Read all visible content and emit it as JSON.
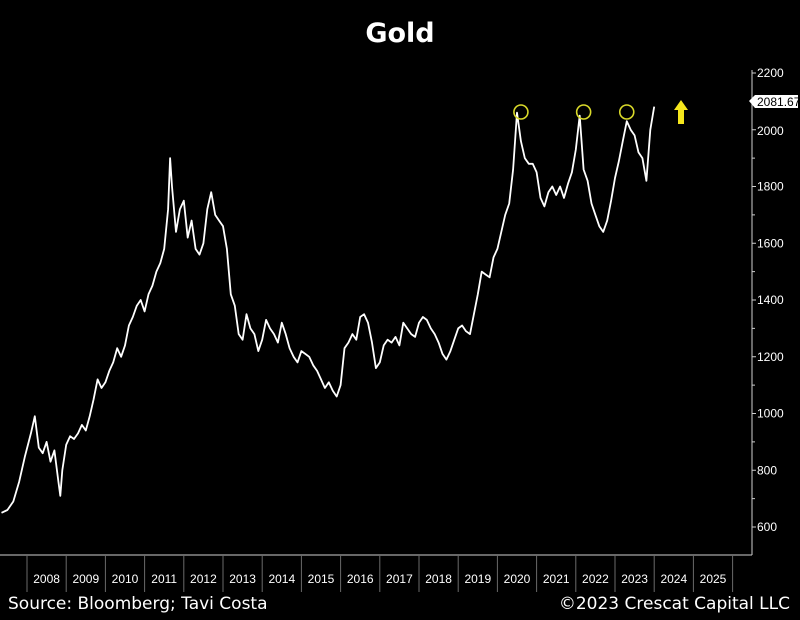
{
  "chart_data": {
    "type": "line",
    "title": "Gold",
    "xlabel": "",
    "ylabel": "",
    "ylim": [
      560,
      2200
    ],
    "y_ticks": [
      600,
      800,
      1000,
      1200,
      1400,
      1600,
      1800,
      2000,
      2200
    ],
    "x_tick_labels": [
      "2008",
      "2009",
      "2010",
      "2011",
      "2012",
      "2013",
      "2014",
      "2015",
      "2016",
      "2017",
      "2018",
      "2019",
      "2020",
      "2021",
      "2022",
      "2023",
      "2024",
      "2025"
    ],
    "grid": false,
    "legend": null,
    "last_value_label": "2081.67",
    "annotations": [
      {
        "type": "circle",
        "label": "peak-2020",
        "x": 2020.6,
        "y": 2060
      },
      {
        "type": "circle",
        "label": "peak-2022",
        "x": 2022.2,
        "y": 2050
      },
      {
        "type": "circle",
        "label": "peak-2023",
        "x": 2023.3,
        "y": 2050
      },
      {
        "type": "arrow-up",
        "color": "#f5e61c",
        "x": 2024.6,
        "y": 2040
      }
    ],
    "series": [
      {
        "name": "Gold",
        "color": "#ffffff",
        "x": [
          2007.35,
          2007.5,
          2007.65,
          2007.8,
          2007.95,
          2008.1,
          2008.2,
          2008.3,
          2008.4,
          2008.5,
          2008.6,
          2008.7,
          2008.8,
          2008.85,
          2008.9,
          2009.0,
          2009.1,
          2009.2,
          2009.3,
          2009.4,
          2009.5,
          2009.6,
          2009.7,
          2009.8,
          2009.9,
          2010.0,
          2010.1,
          2010.2,
          2010.3,
          2010.4,
          2010.5,
          2010.6,
          2010.7,
          2010.8,
          2010.9,
          2011.0,
          2011.1,
          2011.2,
          2011.3,
          2011.4,
          2011.5,
          2011.6,
          2011.65,
          2011.7,
          2011.8,
          2011.9,
          2012.0,
          2012.1,
          2012.2,
          2012.3,
          2012.4,
          2012.5,
          2012.6,
          2012.7,
          2012.8,
          2012.9,
          2013.0,
          2013.1,
          2013.2,
          2013.3,
          2013.4,
          2013.5,
          2013.6,
          2013.7,
          2013.8,
          2013.9,
          2014.0,
          2014.1,
          2014.2,
          2014.3,
          2014.4,
          2014.5,
          2014.6,
          2014.7,
          2014.8,
          2014.9,
          2015.0,
          2015.1,
          2015.2,
          2015.3,
          2015.4,
          2015.5,
          2015.6,
          2015.7,
          2015.8,
          2015.9,
          2016.0,
          2016.1,
          2016.2,
          2016.3,
          2016.4,
          2016.5,
          2016.6,
          2016.7,
          2016.8,
          2016.9,
          2017.0,
          2017.1,
          2017.2,
          2017.3,
          2017.4,
          2017.5,
          2017.6,
          2017.7,
          2017.8,
          2017.9,
          2018.0,
          2018.1,
          2018.2,
          2018.3,
          2018.4,
          2018.5,
          2018.6,
          2018.7,
          2018.8,
          2018.9,
          2019.0,
          2019.1,
          2019.2,
          2019.3,
          2019.4,
          2019.5,
          2019.6,
          2019.7,
          2019.8,
          2019.9,
          2020.0,
          2020.1,
          2020.2,
          2020.3,
          2020.4,
          2020.5,
          2020.6,
          2020.7,
          2020.8,
          2020.9,
          2021.0,
          2021.1,
          2021.2,
          2021.3,
          2021.4,
          2021.5,
          2021.6,
          2021.7,
          2021.8,
          2021.9,
          2022.0,
          2022.1,
          2022.2,
          2022.3,
          2022.4,
          2022.5,
          2022.6,
          2022.7,
          2022.8,
          2022.9,
          2023.0,
          2023.1,
          2023.2,
          2023.3,
          2023.4,
          2023.5,
          2023.6,
          2023.7,
          2023.8,
          2023.9,
          2024.0
        ],
        "values": [
          650,
          660,
          690,
          760,
          850,
          930,
          990,
          880,
          860,
          900,
          830,
          870,
          760,
          710,
          800,
          890,
          920,
          910,
          930,
          960,
          940,
          990,
          1050,
          1120,
          1090,
          1110,
          1150,
          1180,
          1230,
          1200,
          1240,
          1310,
          1340,
          1380,
          1400,
          1360,
          1420,
          1450,
          1500,
          1530,
          1580,
          1720,
          1900,
          1800,
          1640,
          1720,
          1750,
          1620,
          1680,
          1580,
          1560,
          1600,
          1720,
          1780,
          1700,
          1680,
          1660,
          1580,
          1420,
          1380,
          1280,
          1260,
          1350,
          1300,
          1280,
          1220,
          1260,
          1330,
          1300,
          1280,
          1250,
          1320,
          1280,
          1230,
          1200,
          1180,
          1220,
          1210,
          1200,
          1170,
          1150,
          1120,
          1090,
          1110,
          1080,
          1060,
          1100,
          1230,
          1250,
          1280,
          1260,
          1340,
          1350,
          1320,
          1250,
          1160,
          1180,
          1240,
          1260,
          1250,
          1270,
          1240,
          1320,
          1300,
          1280,
          1270,
          1320,
          1340,
          1330,
          1300,
          1280,
          1250,
          1210,
          1190,
          1220,
          1260,
          1300,
          1310,
          1290,
          1280,
          1350,
          1420,
          1500,
          1490,
          1480,
          1550,
          1580,
          1640,
          1700,
          1740,
          1860,
          2060,
          1960,
          1900,
          1880,
          1880,
          1850,
          1760,
          1730,
          1780,
          1800,
          1770,
          1800,
          1760,
          1810,
          1850,
          1930,
          2050,
          1860,
          1820,
          1740,
          1700,
          1660,
          1640,
          1680,
          1750,
          1830,
          1890,
          1960,
          2030,
          2000,
          1980,
          1920,
          1900,
          1820,
          2000,
          2081.67
        ]
      }
    ]
  },
  "header": {
    "title": "Gold"
  },
  "axis": {
    "last_value_tag": "2081.67",
    "y_labels": [
      "2200",
      "2000",
      "1800",
      "1600",
      "1400",
      "1200",
      "1000",
      "800",
      "600"
    ],
    "x_labels": [
      "2008",
      "2009",
      "2010",
      "2011",
      "2012",
      "2013",
      "2014",
      "2015",
      "2016",
      "2017",
      "2018",
      "2019",
      "2020",
      "2021",
      "2022",
      "2023",
      "2024",
      "2025"
    ]
  },
  "footer": {
    "source": "Source: Bloomberg; Tavi Costa",
    "copyright": "©2023 Crescat Capital LLC"
  },
  "colors": {
    "background": "#000000",
    "line": "#ffffff",
    "annotation": "#d9d92a",
    "arrow": "#f5e61c"
  }
}
